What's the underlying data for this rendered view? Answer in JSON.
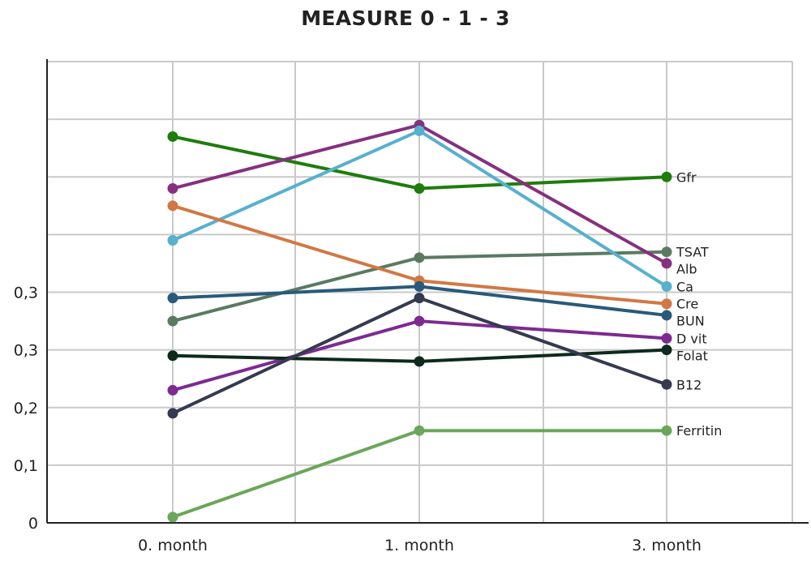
{
  "chart_data": {
    "type": "line",
    "title": "MEASURE 0 - 1 - 3",
    "xlabel": "",
    "ylabel": "",
    "categories": [
      "0. month",
      "1. month",
      "3. month"
    ],
    "y_tick_labels": [
      "0",
      "0,1",
      "0,2",
      "0,3",
      "0,3"
    ],
    "ylim": [
      0,
      0.8
    ],
    "grid": true,
    "legend": "inline-right",
    "series": [
      {
        "name": "Gfr",
        "color": "#1e7d0c",
        "values": [
          0.67,
          0.58,
          0.6
        ]
      },
      {
        "name": "TSAT",
        "color": "#5a7a62",
        "values": [
          0.35,
          0.46,
          0.47
        ]
      },
      {
        "name": "Alb",
        "color": "#86307e",
        "values": [
          0.58,
          0.69,
          0.45
        ]
      },
      {
        "name": "Ca",
        "color": "#57b0ce",
        "values": [
          0.49,
          0.68,
          0.41
        ]
      },
      {
        "name": "Cre",
        "color": "#d17843",
        "values": [
          0.55,
          0.42,
          0.38
        ]
      },
      {
        "name": "BUN",
        "color": "#285a7a",
        "values": [
          0.39,
          0.41,
          0.36
        ]
      },
      {
        "name": "D vit",
        "color": "#7d2a92",
        "values": [
          0.23,
          0.35,
          0.32
        ]
      },
      {
        "name": "Folat",
        "color": "#0d2a1c",
        "values": [
          0.29,
          0.28,
          0.3
        ]
      },
      {
        "name": "B12",
        "color": "#353a50",
        "values": [
          0.19,
          0.39,
          0.24
        ]
      },
      {
        "name": "Ferritin",
        "color": "#6ba65a",
        "values": [
          0.01,
          0.16,
          0.16
        ]
      }
    ]
  }
}
